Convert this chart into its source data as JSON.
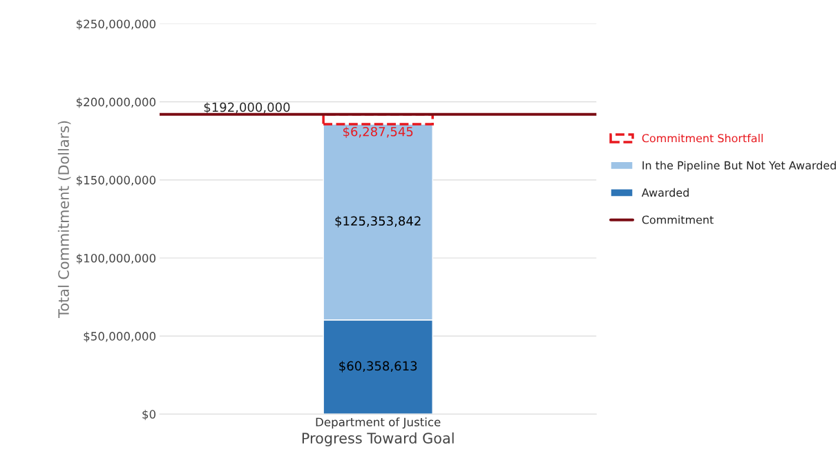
{
  "chart_data": {
    "type": "bar",
    "stacked": true,
    "xlabel": "Progress Toward Goal",
    "ylabel": "Total Commitment (Dollars)",
    "categories": [
      "Department of Justice"
    ],
    "series": [
      {
        "name": "Awarded",
        "color": "#2e75b6",
        "values": [
          60358613
        ],
        "value_labels": [
          "$60,358,613"
        ]
      },
      {
        "name": "In the Pipeline But Not Yet Awarded",
        "color": "#9dc3e6",
        "values": [
          125353842
        ],
        "value_labels": [
          "$125,353,842"
        ]
      },
      {
        "name": "Commitment Shortfall",
        "color": "#e8191f",
        "values": [
          6287545
        ],
        "value_labels": [
          "$6,287,545"
        ],
        "line_style": "dashed"
      }
    ],
    "ylim": [
      0,
      250000000
    ],
    "yticks": [
      {
        "value": 0,
        "label": "$0"
      },
      {
        "value": 50000000,
        "label": "$50,000,000"
      },
      {
        "value": 100000000,
        "label": "$100,000,000"
      },
      {
        "value": 150000000,
        "label": "$150,000,000"
      },
      {
        "value": 200000000,
        "label": "$200,000,000"
      },
      {
        "value": 250000000,
        "label": "$250,000,000"
      }
    ],
    "ref_lines": [
      {
        "axis": "y",
        "value": 192000000,
        "label": "Commitment",
        "color": "#7b0c14"
      }
    ],
    "annotations": [
      {
        "text": "$192,000,000",
        "y": 192000000
      }
    ],
    "grid": "y",
    "legend": "right"
  }
}
